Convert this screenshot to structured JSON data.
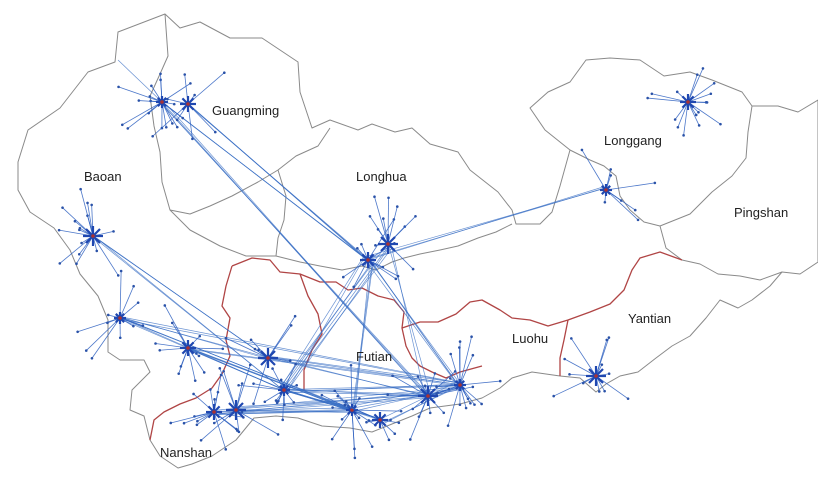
{
  "districts": [
    {
      "id": "baoan",
      "label": "Baoan"
    },
    {
      "id": "guangming",
      "label": "Guangming"
    },
    {
      "id": "longhua",
      "label": "Longhua"
    },
    {
      "id": "longgang",
      "label": "Longgang"
    },
    {
      "id": "pingshan",
      "label": "Pingshan"
    },
    {
      "id": "futian",
      "label": "Futian"
    },
    {
      "id": "luohu",
      "label": "Luohu"
    },
    {
      "id": "yantian",
      "label": "Yantian"
    },
    {
      "id": "nanshan",
      "label": "Nanshan"
    }
  ],
  "colors": {
    "boundary": "#8a8a8a",
    "inner_border": "#b04545",
    "flow_line": "#3a6fc4",
    "hub": "#1f47b0",
    "hub_center": "#aa3333"
  }
}
